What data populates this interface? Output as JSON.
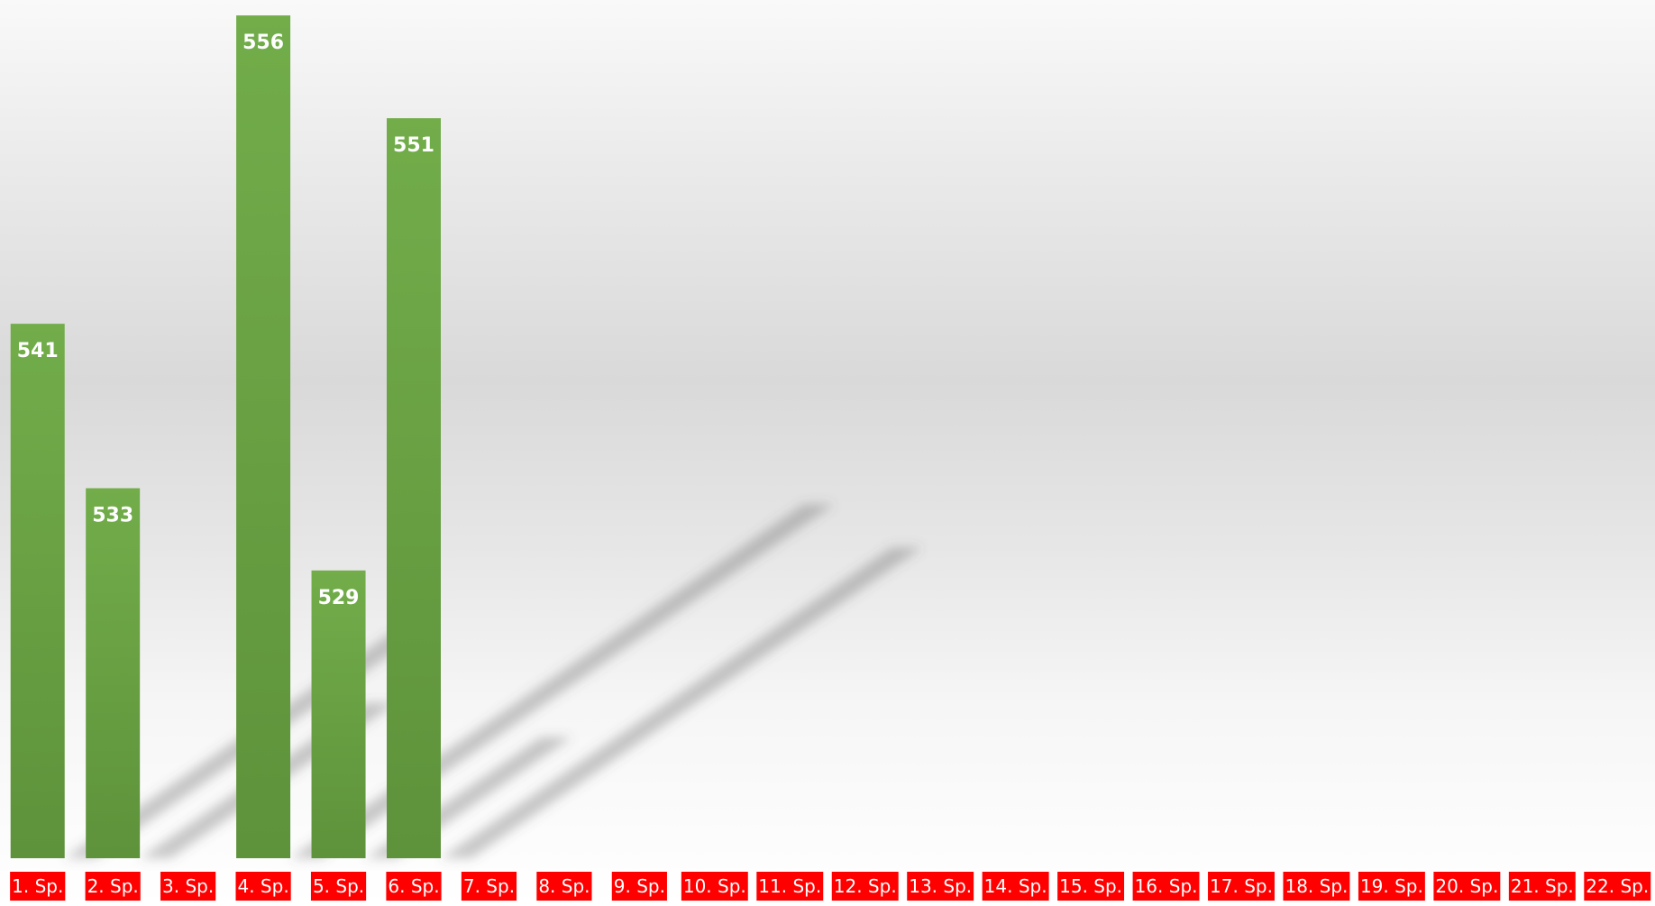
{
  "chart_data": {
    "type": "bar",
    "categories": [
      "1. Sp.",
      "2. Sp.",
      "3. Sp.",
      "4. Sp.",
      "5. Sp.",
      "6. Sp.",
      "7. Sp.",
      "8. Sp.",
      "9. Sp.",
      "10. Sp.",
      "11. Sp.",
      "12. Sp.",
      "13. Sp.",
      "14. Sp.",
      "15. Sp.",
      "16. Sp.",
      "17. Sp.",
      "18. Sp.",
      "19. Sp.",
      "20. Sp.",
      "21. Sp.",
      "22. Sp."
    ],
    "values": [
      541,
      533,
      null,
      556,
      529,
      551,
      null,
      null,
      null,
      null,
      null,
      null,
      null,
      null,
      null,
      null,
      null,
      null,
      null,
      null,
      null,
      null
    ],
    "title": "",
    "xlabel": "",
    "ylabel": "",
    "ylim": [
      515,
      556.4
    ],
    "grid": false,
    "legend": "none",
    "colors": {
      "bar_top": "#72ad4a",
      "bar_bottom": "#5e923b",
      "label_bg": "#ff0000",
      "label_text": "#ffffff"
    }
  }
}
